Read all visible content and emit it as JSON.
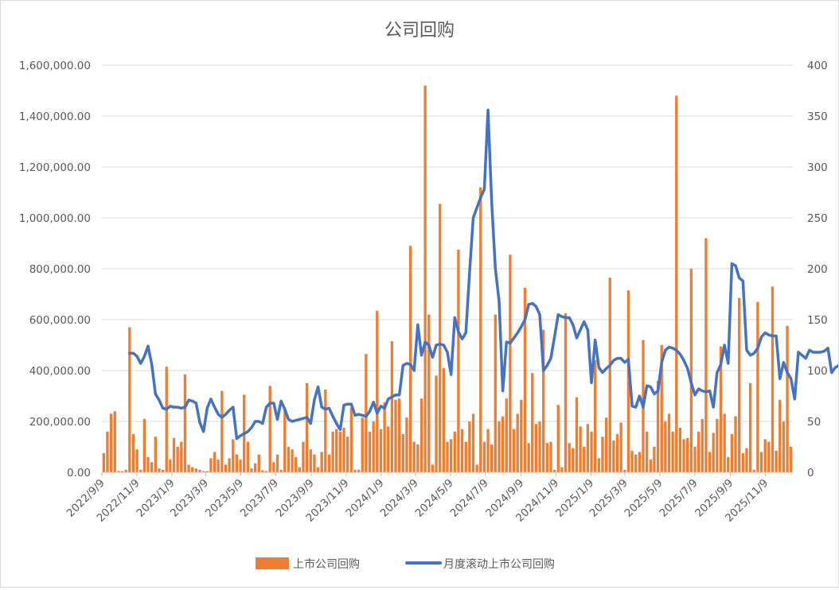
{
  "chart_data": {
    "type": "bar+line",
    "title": "公司回购",
    "xlabel": "",
    "ylabel": "",
    "y_left": {
      "ylim": [
        0,
        1600000
      ],
      "ticks": [
        "0.00",
        "200,000.00",
        "400,000.00",
        "600,000.00",
        "800,000.00",
        "1,000,000.00",
        "1,200,000.00",
        "1,400,000.00",
        "1,600,000.00"
      ]
    },
    "y_right": {
      "ylim": [
        0,
        400
      ],
      "ticks": [
        "0",
        "50",
        "100",
        "150",
        "200",
        "250",
        "300",
        "350",
        "400"
      ]
    },
    "x_tick_labels": [
      "2022/9/9",
      "2022/11/9",
      "2023/1/9",
      "2023/3/9",
      "2023/5/9",
      "2023/7/9",
      "2023/9/9",
      "2023/11/9",
      "2024/1/9",
      "2024/3/9",
      "2024/5/9",
      "2024/7/9",
      "2024/9/9",
      "2024/11/9",
      "2025/1/9",
      "2025/3/9",
      "2025/5/9",
      "2025/7/9",
      "2025/9/9",
      "2025/11/9"
    ],
    "x_range": [
      "2022/9/9",
      "2025/12/27"
    ],
    "legend_position": "bottom",
    "colors": {
      "bars": "#ED7D31",
      "line": "#4472C4",
      "grid": "#d9d9d9"
    },
    "series": [
      {
        "name": "上市公司回购",
        "kind": "bar",
        "axis": "left",
        "values": [
          75000,
          160000,
          230000,
          240000,
          5000,
          5000,
          10000,
          570000,
          150000,
          90000,
          10000,
          210000,
          60000,
          40000,
          140000,
          15000,
          10000,
          415000,
          50000,
          135000,
          100000,
          120000,
          385000,
          30000,
          20000,
          15000,
          10000,
          5000,
          5000,
          55000,
          80000,
          50000,
          320000,
          30000,
          55000,
          130000,
          70000,
          50000,
          305000,
          120000,
          15000,
          35000,
          70000,
          8000,
          5000,
          340000,
          40000,
          70000,
          10000,
          250000,
          100000,
          90000,
          60000,
          20000,
          120000,
          350000,
          90000,
          70000,
          20000,
          80000,
          325000,
          70000,
          160000,
          170000,
          160000,
          175000,
          140000,
          255000,
          10000,
          10000,
          215000,
          465000,
          160000,
          200000,
          635000,
          170000,
          275000,
          180000,
          515000,
          285000,
          290000,
          150000,
          215000,
          890000,
          120000,
          110000,
          290000,
          1520000,
          620000,
          30000,
          380000,
          1055000,
          410000,
          120000,
          130000,
          160000,
          875000,
          170000,
          120000,
          200000,
          230000,
          30000,
          1120000,
          120000,
          170000,
          110000,
          620000,
          200000,
          220000,
          290000,
          855000,
          170000,
          230000,
          285000,
          725000,
          115000,
          390000,
          190000,
          200000,
          560000,
          115000,
          120000,
          10000,
          265000,
          20000,
          625000,
          115000,
          95000,
          295000,
          180000,
          100000,
          190000,
          160000,
          440000,
          55000,
          140000,
          215000,
          765000,
          125000,
          150000,
          195000,
          10000,
          715000,
          85000,
          70000,
          80000,
          520000,
          160000,
          50000,
          100000,
          360000,
          500000,
          200000,
          230000,
          160000,
          1480000,
          175000,
          130000,
          135000,
          800000,
          100000,
          160000,
          210000,
          920000,
          80000,
          155000,
          210000,
          495000,
          230000,
          60000,
          150000,
          220000,
          685000,
          75000,
          95000,
          350000,
          10000,
          670000,
          80000,
          130000,
          120000,
          730000,
          85000,
          285000,
          200000,
          575000,
          100000
        ]
      },
      {
        "name": "月度滚动上市公司回购",
        "kind": "line",
        "axis": "right",
        "points": [
          [
            7,
            117
          ],
          [
            8,
            117
          ],
          [
            9,
            114
          ],
          [
            10,
            107
          ],
          [
            11,
            114
          ],
          [
            12,
            124
          ],
          [
            13,
            106
          ],
          [
            14,
            77
          ],
          [
            15,
            71
          ],
          [
            16,
            63
          ],
          [
            17,
            62
          ],
          [
            18,
            65
          ],
          [
            19,
            64
          ],
          [
            20,
            64
          ],
          [
            21,
            63
          ],
          [
            22,
            64
          ],
          [
            23,
            71
          ],
          [
            24,
            70
          ],
          [
            25,
            68
          ],
          [
            26,
            49
          ],
          [
            27,
            40
          ],
          [
            28,
            63
          ],
          [
            29,
            72
          ],
          [
            30,
            64
          ],
          [
            31,
            57
          ],
          [
            32,
            54
          ],
          [
            33,
            57
          ],
          [
            34,
            61
          ],
          [
            35,
            64
          ],
          [
            36,
            33
          ],
          [
            37,
            36
          ],
          [
            38,
            38
          ],
          [
            39,
            40
          ],
          [
            40,
            44
          ],
          [
            41,
            50
          ],
          [
            42,
            50
          ],
          [
            43,
            48
          ],
          [
            44,
            64
          ],
          [
            45,
            68
          ],
          [
            46,
            68
          ],
          [
            47,
            52
          ],
          [
            48,
            70
          ],
          [
            49,
            62
          ],
          [
            50,
            52
          ],
          [
            51,
            50
          ],
          [
            52,
            51
          ],
          [
            53,
            52
          ],
          [
            54,
            53
          ],
          [
            55,
            54
          ],
          [
            56,
            48
          ],
          [
            57,
            71
          ],
          [
            58,
            84
          ],
          [
            59,
            64
          ],
          [
            60,
            62
          ],
          [
            61,
            63
          ],
          [
            62,
            55
          ],
          [
            63,
            48
          ],
          [
            64,
            42
          ],
          [
            65,
            66
          ],
          [
            66,
            67
          ],
          [
            67,
            67
          ],
          [
            68,
            56
          ],
          [
            69,
            57
          ],
          [
            70,
            56
          ],
          [
            71,
            55
          ],
          [
            72,
            60
          ],
          [
            73,
            69
          ],
          [
            74,
            58
          ],
          [
            75,
            65
          ],
          [
            76,
            63
          ],
          [
            77,
            72
          ],
          [
            78,
            74
          ],
          [
            79,
            76
          ],
          [
            80,
            76
          ],
          [
            81,
            105
          ],
          [
            82,
            107
          ],
          [
            83,
            106
          ],
          [
            84,
            100
          ],
          [
            85,
            145
          ],
          [
            86,
            115
          ],
          [
            87,
            128
          ],
          [
            88,
            125
          ],
          [
            89,
            113
          ],
          [
            90,
            125
          ],
          [
            91,
            126
          ],
          [
            92,
            125
          ],
          [
            93,
            118
          ],
          [
            94,
            96
          ],
          [
            95,
            152
          ],
          [
            96,
            138
          ],
          [
            97,
            131
          ],
          [
            98,
            137
          ],
          [
            99,
            196
          ],
          [
            100,
            250
          ],
          [
            101,
            260
          ],
          [
            102,
            270
          ],
          [
            103,
            278
          ],
          [
            104,
            356
          ],
          [
            105,
            265
          ],
          [
            106,
            200
          ],
          [
            107,
            168
          ],
          [
            108,
            80
          ],
          [
            109,
            128
          ],
          [
            110,
            127
          ],
          [
            111,
            132
          ],
          [
            112,
            137
          ],
          [
            113,
            143
          ],
          [
            114,
            150
          ],
          [
            115,
            165
          ],
          [
            116,
            166
          ],
          [
            117,
            163
          ],
          [
            118,
            155
          ],
          [
            119,
            100
          ],
          [
            120,
            105
          ],
          [
            121,
            112
          ],
          [
            122,
            133
          ],
          [
            123,
            155
          ],
          [
            124,
            153
          ],
          [
            125,
            152
          ],
          [
            126,
            152
          ],
          [
            127,
            145
          ],
          [
            128,
            132
          ],
          [
            129,
            140
          ],
          [
            130,
            148
          ],
          [
            131,
            140
          ],
          [
            132,
            88
          ],
          [
            133,
            130
          ],
          [
            134,
            103
          ],
          [
            135,
            98
          ],
          [
            136,
            102
          ],
          [
            137,
            105
          ],
          [
            138,
            110
          ],
          [
            139,
            112
          ],
          [
            140,
            112
          ],
          [
            141,
            108
          ],
          [
            142,
            111
          ],
          [
            143,
            65
          ],
          [
            144,
            64
          ],
          [
            145,
            75
          ],
          [
            146,
            64
          ],
          [
            147,
            85
          ],
          [
            148,
            84
          ],
          [
            149,
            77
          ],
          [
            150,
            80
          ],
          [
            151,
            108
          ],
          [
            152,
            120
          ],
          [
            153,
            123
          ],
          [
            154,
            122
          ],
          [
            155,
            120
          ],
          [
            156,
            116
          ],
          [
            157,
            110
          ],
          [
            158,
            102
          ],
          [
            159,
            88
          ],
          [
            160,
            76
          ],
          [
            161,
            82
          ],
          [
            162,
            80
          ],
          [
            163,
            79
          ],
          [
            164,
            80
          ],
          [
            165,
            64
          ],
          [
            166,
            98
          ],
          [
            167,
            106
          ],
          [
            168,
            125
          ],
          [
            169,
            107
          ],
          [
            170,
            205
          ],
          [
            171,
            203
          ],
          [
            172,
            191
          ],
          [
            173,
            188
          ],
          [
            174,
            120
          ],
          [
            175,
            115
          ],
          [
            176,
            117
          ],
          [
            177,
            122
          ],
          [
            178,
            133
          ],
          [
            179,
            137
          ],
          [
            180,
            135
          ],
          [
            181,
            134
          ],
          [
            182,
            134
          ],
          [
            183,
            92
          ],
          [
            184,
            108
          ],
          [
            185,
            98
          ],
          [
            186,
            92
          ],
          [
            187,
            72
          ],
          [
            188,
            118
          ],
          [
            189,
            115
          ],
          [
            190,
            112
          ],
          [
            191,
            120
          ],
          [
            192,
            118
          ],
          [
            193,
            118
          ],
          [
            194,
            118
          ],
          [
            195,
            119
          ],
          [
            196,
            122
          ],
          [
            197,
            98
          ],
          [
            198,
            103
          ],
          [
            199,
            105
          ],
          [
            200,
            119
          ],
          [
            201,
            128
          ],
          [
            202,
            120
          ],
          [
            203,
            114
          ],
          [
            204,
            92
          ],
          [
            205,
            111
          ]
        ]
      }
    ]
  }
}
